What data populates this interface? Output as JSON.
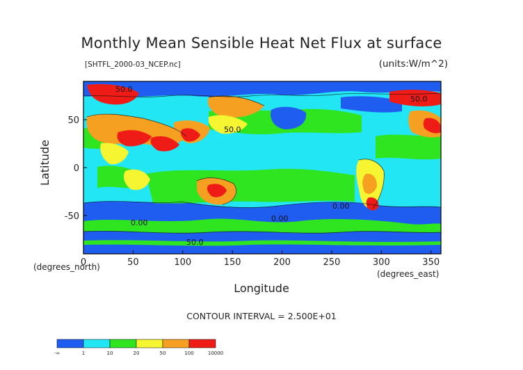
{
  "chart_data": {
    "type": "heatmap",
    "title": "Monthly Mean Sensible Heat Net Flux at surface",
    "subtitle": "[SHTFL_2000-03_NCEP.nc]",
    "units": "(units:W/m^2)",
    "xlabel": "Longitude",
    "ylabel": "Latitude",
    "x_units_note": "(degrees_east)",
    "y_units_note": "(degrees_north)",
    "xlim": [
      0,
      360
    ],
    "ylim": [
      -90,
      90
    ],
    "x_ticks": [
      "0",
      "50",
      "100",
      "150",
      "200",
      "250",
      "300",
      "350"
    ],
    "y_ticks": [
      "50",
      "0",
      "-50"
    ],
    "contour_interval_text": "CONTOUR INTERVAL = 2.500E+01",
    "contour_labels": [
      "50.0",
      "50.0",
      "0.00",
      "0.00",
      "0.00",
      "50.0",
      "50.0"
    ],
    "legend": {
      "bins": [
        {
          "label": "-∞",
          "color": "#1f5cf0"
        },
        {
          "label": "1",
          "color": "#23e6f5"
        },
        {
          "label": "10",
          "color": "#2ee51f"
        },
        {
          "label": "20",
          "color": "#f5f532"
        },
        {
          "label": "50",
          "color": "#f5a020"
        },
        {
          "label": "100",
          "color": "#ef1b16"
        },
        {
          "label": "10000",
          "color": ""
        }
      ]
    },
    "grid": false
  }
}
